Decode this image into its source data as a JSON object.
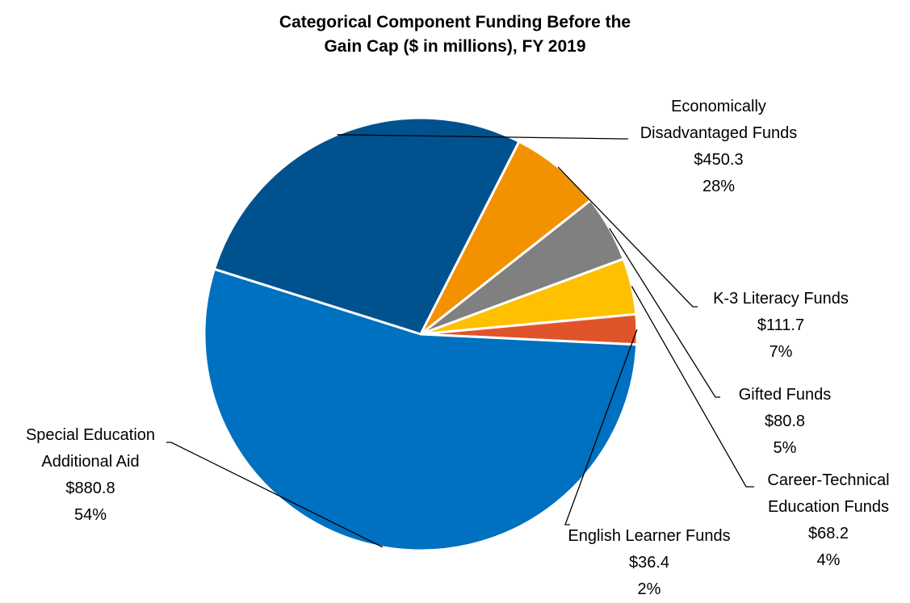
{
  "chart_data": {
    "type": "pie",
    "title_lines": [
      "Categorical Component Funding Before the",
      "Gain Cap ($ in millions), FY 2019"
    ],
    "slices": [
      {
        "name": "Economically Disadvantaged Funds",
        "name_lines": [
          "Economically",
          "Disadvantaged Funds"
        ],
        "value": 450.3,
        "value_label": "$450.3",
        "percent_label": "28%",
        "color": "#00528F"
      },
      {
        "name": "K-3 Literacy Funds",
        "name_lines": [
          "K-3 Literacy Funds"
        ],
        "value": 111.7,
        "value_label": "$111.7",
        "percent_label": "7%",
        "color": "#F39200"
      },
      {
        "name": "Gifted Funds",
        "name_lines": [
          "Gifted Funds"
        ],
        "value": 80.8,
        "value_label": "$80.8",
        "percent_label": "5%",
        "color": "#808080"
      },
      {
        "name": "Career-Technical Education Funds",
        "name_lines": [
          "Career-Technical",
          "Education Funds"
        ],
        "value": 68.2,
        "value_label": "$68.2",
        "percent_label": "4%",
        "color": "#FFC000"
      },
      {
        "name": "English Learner Funds",
        "name_lines": [
          "English Learner Funds"
        ],
        "value": 36.4,
        "value_label": "$36.4",
        "percent_label": "2%",
        "color": "#E0542A"
      },
      {
        "name": "Special Education Additional Aid",
        "name_lines": [
          "Special Education",
          "Additional Aid"
        ],
        "value": 880.8,
        "value_label": "$880.8",
        "percent_label": "54%",
        "color": "#0070C0"
      }
    ]
  }
}
